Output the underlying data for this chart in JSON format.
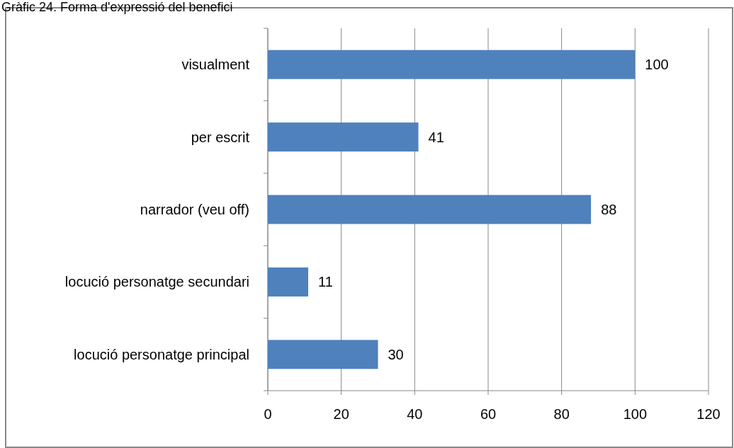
{
  "chart_data": {
    "type": "bar",
    "title": "Gràfic 24. Forma d'expressió del benefici",
    "orientation": "horizontal",
    "categories": [
      "visualment",
      "per escrit",
      "narrador (veu off)",
      "locució personatge secundari",
      "locució personatge principal"
    ],
    "values": [
      100,
      41,
      88,
      11,
      30
    ],
    "color": "#4f81bd",
    "xlim": [
      0,
      120
    ],
    "xticks": [
      0,
      20,
      40,
      60,
      80,
      100,
      120
    ],
    "grid": "x",
    "data_labels": true
  }
}
